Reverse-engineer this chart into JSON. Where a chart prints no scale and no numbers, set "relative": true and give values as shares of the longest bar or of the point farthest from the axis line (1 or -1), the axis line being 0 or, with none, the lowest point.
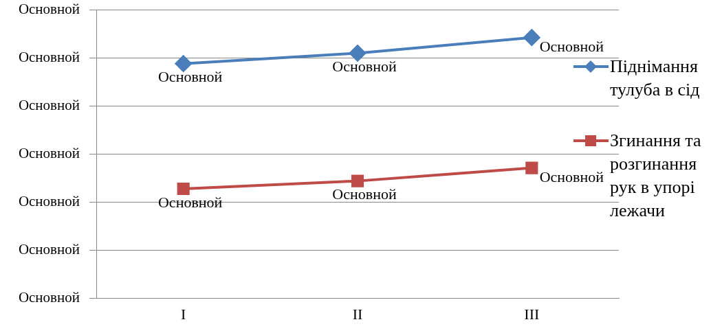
{
  "chart_data": {
    "type": "line",
    "categories": [
      "I",
      "II",
      "III"
    ],
    "relative": true,
    "annotations": [
      "Основной",
      "Основной",
      "Основной",
      "Основной",
      "Основной",
      "Основной",
      "Основной",
      {
        "text": "Основной",
        "x": "I",
        "y": 0.9
      },
      {
        "text": "Основной",
        "x": "II",
        "y": 0.94
      },
      {
        "text": "Основной",
        "x": "III",
        "y": 1
      },
      {
        "text": "Основной",
        "x": "I",
        "y": 0.42
      },
      {
        "text": "Основной",
        "x": "II",
        "y": 0.45
      },
      {
        "text": "Основной",
        "x": "III",
        "y": 0.5
      }
    ],
    "grid": "y",
    "legend": "right",
    "line_style": "solid",
    "series": [
      {
        "name": "Піднімання тулуба в сід",
        "color": "#4a7ebb",
        "marker": "diamond",
        "values": [
          0.9,
          0.94,
          1
        ]
      },
      {
        "name": "Згинання та розгинання рук в упорі лежачи",
        "color": "#be4b48",
        "marker": "square",
        "values": [
          0.42,
          0.45,
          0.5
        ]
      }
    ]
  }
}
